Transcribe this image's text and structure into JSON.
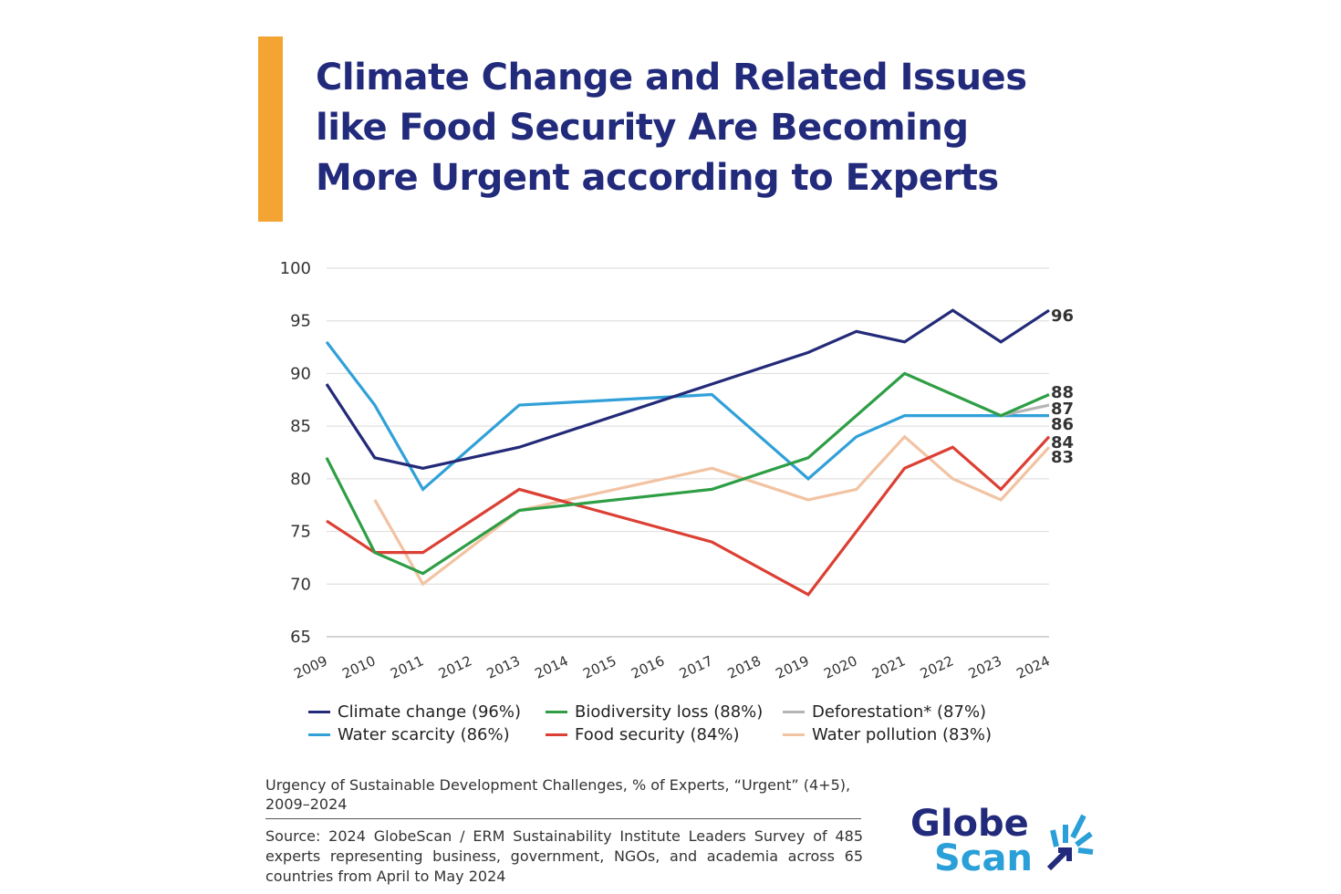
{
  "title": "Climate Change and Related Issues like Food Security Are Becoming More Urgent according to Experts",
  "caption": "Urgency of Sustainable Development Challenges, % of Experts, “Urgent” (4+5), 2009–2024",
  "source": "Source: 2024 GlobeScan / ERM Sustainability Institute Leaders Survey of 485 experts representing business, government, NGOs, and academia across 65 countries from April to May 2024",
  "logo": {
    "line1": "Globe",
    "line2": "Scan"
  },
  "colors": {
    "accent_bar": "#f3a433",
    "title": "#222a7b"
  },
  "chart_data": {
    "type": "line",
    "x": [
      2009,
      2010,
      2011,
      2012,
      2013,
      2014,
      2015,
      2016,
      2017,
      2018,
      2019,
      2020,
      2021,
      2022,
      2023,
      2024
    ],
    "ylim": [
      65,
      100
    ],
    "yticks": [
      100,
      95,
      90,
      85,
      80,
      75,
      70,
      65
    ],
    "grid": true,
    "legend_position": "bottom",
    "series": [
      {
        "name": "Climate change (96%)",
        "color": "#232a78",
        "end_label": "96",
        "values": [
          89,
          82,
          81,
          null,
          83,
          null,
          null,
          null,
          89,
          null,
          92,
          94,
          93,
          96,
          93,
          96
        ]
      },
      {
        "name": "Biodiversity loss (88%)",
        "color": "#2e9e45",
        "end_label": "88",
        "values": [
          82,
          73,
          71,
          null,
          77,
          null,
          null,
          null,
          79,
          null,
          82,
          null,
          90,
          null,
          86,
          88
        ]
      },
      {
        "name": "Deforestation* (87%)",
        "color": "#b5b5b5",
        "end_label": "87",
        "values": [
          null,
          null,
          null,
          null,
          null,
          null,
          null,
          null,
          null,
          null,
          null,
          null,
          null,
          null,
          86,
          87
        ]
      },
      {
        "name": "Water scarcity (86%)",
        "color": "#31a0d8",
        "end_label": "86",
        "values": [
          93,
          87,
          79,
          null,
          87,
          null,
          null,
          null,
          88,
          null,
          80,
          84,
          86,
          86,
          86,
          86
        ]
      },
      {
        "name": "Food security (84%)",
        "color": "#dc3f33",
        "end_label": "84",
        "values": [
          76,
          73,
          73,
          null,
          79,
          null,
          null,
          null,
          74,
          null,
          69,
          null,
          81,
          83,
          79,
          84
        ]
      },
      {
        "name": "Water pollution (83%)",
        "color": "#f2c3a2",
        "end_label": "83",
        "values": [
          null,
          78,
          70,
          null,
          77,
          null,
          null,
          null,
          81,
          null,
          78,
          79,
          84,
          80,
          78,
          83
        ]
      }
    ]
  }
}
